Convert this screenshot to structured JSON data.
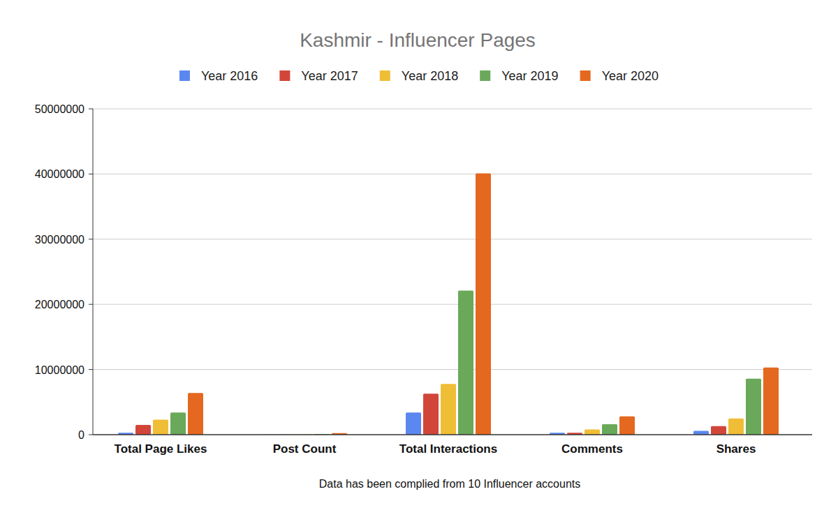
{
  "chart_data": {
    "type": "bar",
    "title": "Kashmir - Influencer Pages",
    "annotations": [
      "Data has been complied from 10 Influencer accounts"
    ],
    "categories": [
      "Total Page Likes",
      "Post Count",
      "Total Interactions",
      "Comments",
      "Shares"
    ],
    "series": [
      {
        "name": "Year 2016",
        "color": "#5b87f0",
        "values": [
          300000,
          20000,
          3400000,
          300000,
          600000
        ]
      },
      {
        "name": "Year 2017",
        "color": "#d2463a",
        "values": [
          1500000,
          40000,
          6300000,
          300000,
          1300000
        ]
      },
      {
        "name": "Year 2018",
        "color": "#efbe36",
        "values": [
          2300000,
          60000,
          7800000,
          800000,
          2500000
        ]
      },
      {
        "name": "Year 2019",
        "color": "#6aa85a",
        "values": [
          3400000,
          100000,
          22100000,
          1600000,
          8600000
        ]
      },
      {
        "name": "Year 2020",
        "color": "#e4681f",
        "values": [
          6400000,
          250000,
          40100000,
          2800000,
          10300000
        ]
      }
    ],
    "ylim": [
      0,
      50000000
    ],
    "yticks": [
      0,
      10000000,
      20000000,
      30000000,
      40000000,
      50000000
    ],
    "grid": true,
    "legend": "top"
  }
}
